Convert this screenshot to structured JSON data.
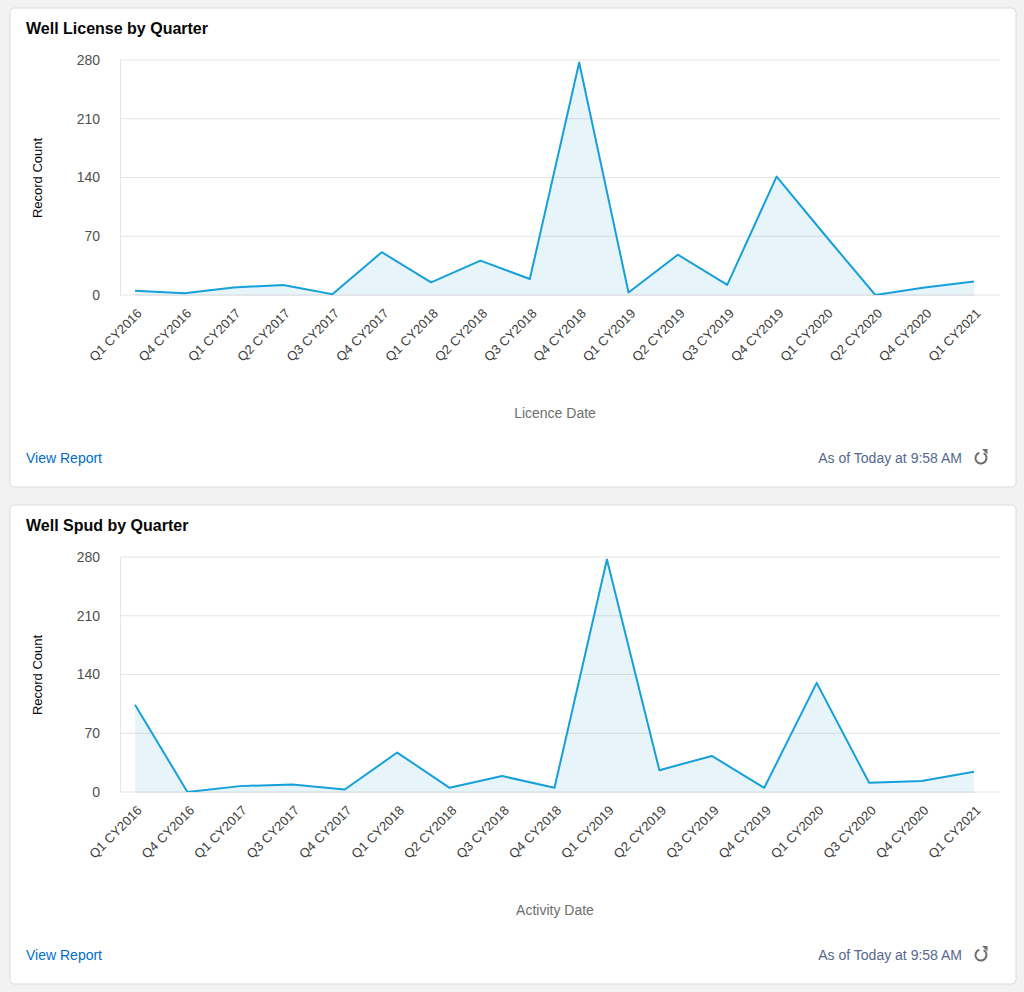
{
  "chart_data": [
    {
      "type": "line",
      "title": "Well License by Quarter",
      "x_label": "Licence Date",
      "y_label": "Record Count",
      "footer_link": "View Report",
      "footer_note": "As of Today at 9:58 AM",
      "categories": [
        "Q1 CY2016",
        "Q4 CY2016",
        "Q1 CY2017",
        "Q2 CY2017",
        "Q3 CY2017",
        "Q4 CY2017",
        "Q1 CY2018",
        "Q2 CY2018",
        "Q3 CY2018",
        "Q4 CY2018",
        "Q1 CY2019",
        "Q2 CY2019",
        "Q3 CY2019",
        "Q4 CY2019",
        "Q1 CY2020",
        "Q2 CY2020",
        "Q4 CY2020",
        "Q1 CY2021"
      ],
      "values": [
        5,
        2,
        9,
        12,
        1,
        51,
        15,
        41,
        19,
        277,
        3,
        48,
        12,
        141,
        70,
        0,
        9,
        16
      ],
      "color": "#16a0db",
      "ylim": [
        0,
        280
      ],
      "yticks": [
        0,
        70,
        140,
        210,
        280
      ],
      "grid": true
    },
    {
      "type": "line",
      "title": "Well Spud by Quarter",
      "x_label": "Activity Date",
      "y_label": "Record Count",
      "footer_link": "View Report",
      "footer_note": "As of Today at 9:58 AM",
      "categories": [
        "Q1 CY2016",
        "Q4 CY2016",
        "Q1 CY2017",
        "Q3 CY2017",
        "Q4 CY2017",
        "Q1 CY2018",
        "Q2 CY2018",
        "Q3 CY2018",
        "Q4 CY2018",
        "Q1 CY2019",
        "Q2 CY2019",
        "Q3 CY2019",
        "Q4 CY2019",
        "Q1 CY2020",
        "Q3 CY2020",
        "Q4 CY2020",
        "Q1 CY2021"
      ],
      "values": [
        104,
        0,
        7,
        9,
        3,
        47,
        5,
        19,
        5,
        277,
        26,
        43,
        5,
        130,
        11,
        13,
        24
      ],
      "color": "#16a0db",
      "ylim": [
        0,
        280
      ],
      "yticks": [
        0,
        70,
        140,
        210,
        280
      ],
      "grid": true
    }
  ]
}
